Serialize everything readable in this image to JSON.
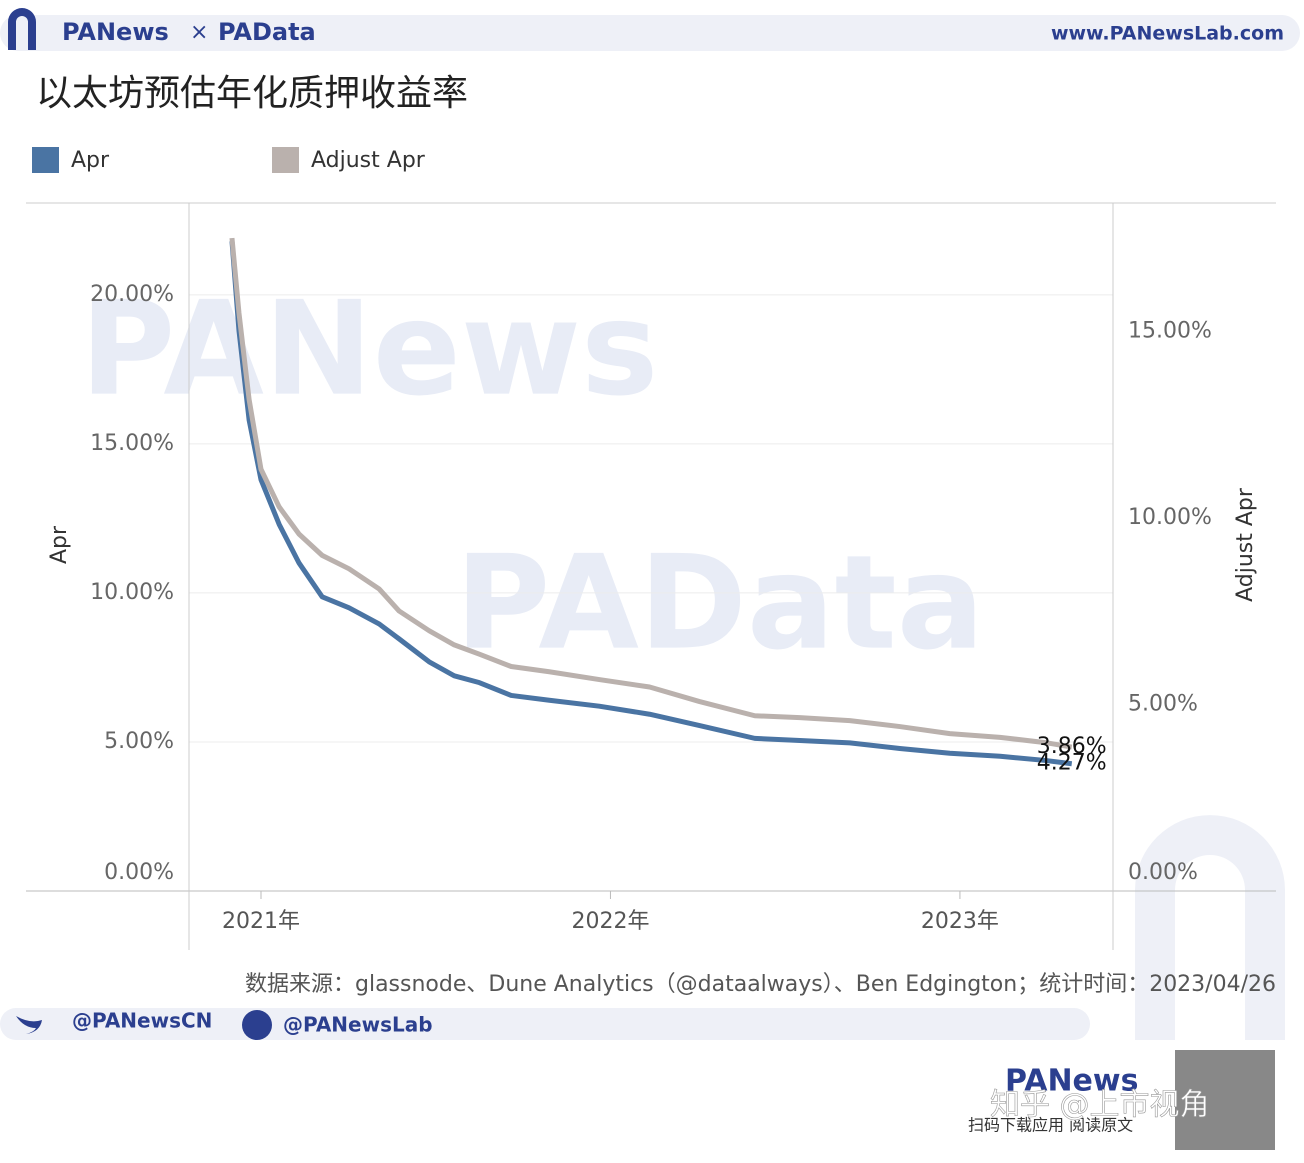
{
  "header": {
    "brand_left": "PANews",
    "brand_sep": "×",
    "brand_right": "PAData",
    "url": "www.PANewsLab.com"
  },
  "chart_data": {
    "type": "line",
    "title": "以太坊预估年化质押收益率",
    "y_label": "Apr",
    "y2_label": "Adjust Apr",
    "x": [
      2020.917,
      2020.937,
      2020.966,
      2021.0,
      2021.052,
      2021.109,
      2021.175,
      2021.252,
      2021.338,
      2021.395,
      2021.481,
      2021.553,
      2021.625,
      2021.716,
      2021.825,
      2021.968,
      2022.112,
      2022.255,
      2022.413,
      2022.542,
      2022.685,
      2022.828,
      2022.971,
      2023.115,
      2023.244,
      2023.32
    ],
    "series": [
      {
        "name": "Apr",
        "color": "#4a74a3",
        "values": [
          21.8,
          18.8,
          15.8,
          13.8,
          12.3,
          11.0,
          9.87,
          9.5,
          8.96,
          8.46,
          7.69,
          7.22,
          6.99,
          6.56,
          6.4,
          6.2,
          5.93,
          5.55,
          5.12,
          5.05,
          4.97,
          4.78,
          4.62,
          4.52,
          4.38,
          4.27
        ],
        "value_labels": [
          null,
          null,
          null,
          null,
          null,
          null,
          null,
          null,
          null,
          null,
          null,
          null,
          null,
          null,
          null,
          null,
          null,
          null,
          null,
          null,
          null,
          null,
          null,
          null,
          null,
          "4.27%"
        ]
      },
      {
        "name": "Adjust Apr",
        "color": "#bab1ad",
        "axis": "y2",
        "values": [
          17.51,
          15.5,
          13.18,
          11.31,
          10.3,
          9.57,
          9.0,
          8.64,
          8.1,
          7.51,
          6.98,
          6.6,
          6.35,
          6.02,
          5.88,
          5.67,
          5.47,
          5.08,
          4.7,
          4.65,
          4.57,
          4.41,
          4.22,
          4.12,
          3.98,
          3.86
        ],
        "value_labels": [
          null,
          null,
          null,
          null,
          null,
          null,
          null,
          null,
          null,
          null,
          null,
          null,
          null,
          null,
          null,
          null,
          null,
          null,
          null,
          null,
          null,
          null,
          null,
          null,
          null,
          "3.86%"
        ]
      }
    ],
    "xlim": [
      2020.794,
      2023.438
    ],
    "xticks": [
      {
        "value": 2021,
        "label": "2021年"
      },
      {
        "value": 2022,
        "label": "2022年"
      },
      {
        "value": 2023,
        "label": "2023年"
      }
    ],
    "ylim": [
      0,
      23.08
    ],
    "yticks": [
      {
        "value": 0,
        "label": "0.00%"
      },
      {
        "value": 5,
        "label": "5.00%"
      },
      {
        "value": 10,
        "label": "10.00%"
      },
      {
        "value": 15,
        "label": "15.00%"
      },
      {
        "value": 20,
        "label": "20.00%"
      }
    ],
    "y2lim": [
      0,
      18.45
    ],
    "y2ticks": [
      {
        "value": 0,
        "label": "0.00%"
      },
      {
        "value": 5,
        "label": "5.00%"
      },
      {
        "value": 10,
        "label": "10.00%"
      },
      {
        "value": 15,
        "label": "15.00%"
      }
    ],
    "grid": true,
    "source": "数据来源：glassnode、Dune Analytics（@dataalways）、Ben Edgington；统计时间：2023/04/26"
  },
  "watermarks": [
    "PANews",
    "PAData"
  ],
  "footer": {
    "twitter": "@PANewsCN",
    "facebook": "@PANewsLab",
    "app_brand": "PANews",
    "app_caption": "扫码下载应用  阅读原文",
    "overlay": "知乎 @上市视角"
  }
}
